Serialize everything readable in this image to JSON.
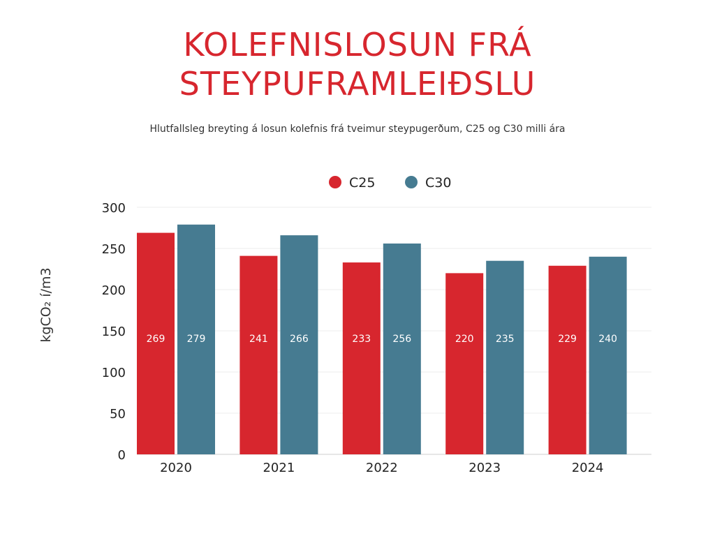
{
  "title_line1": "KOLEFNISLOSUN FRÁ",
  "title_line2": "STEYPUFRAMLEIÐSLU",
  "subtitle": "Hlutfallsleg breyting á losun kolefnis frá tveimur steypugerðum, C25 og C30 milli ára",
  "colors": {
    "title": "#d7262e",
    "C25": "#d7262e",
    "C30": "#467b91"
  },
  "chart_data": {
    "type": "bar",
    "categories": [
      "2020",
      "2021",
      "2022",
      "2023",
      "2024"
    ],
    "series": [
      {
        "name": "C25",
        "values": [
          269,
          241,
          233,
          220,
          229
        ]
      },
      {
        "name": "C30",
        "values": [
          279,
          266,
          256,
          235,
          240
        ]
      }
    ],
    "ylabel": "kgCO₂ í/m3",
    "ylim": [
      0,
      300
    ],
    "yticks": [
      "0",
      "50",
      "100",
      "150",
      "200",
      "250",
      "300"
    ],
    "grid": true,
    "legend": "top-center"
  }
}
